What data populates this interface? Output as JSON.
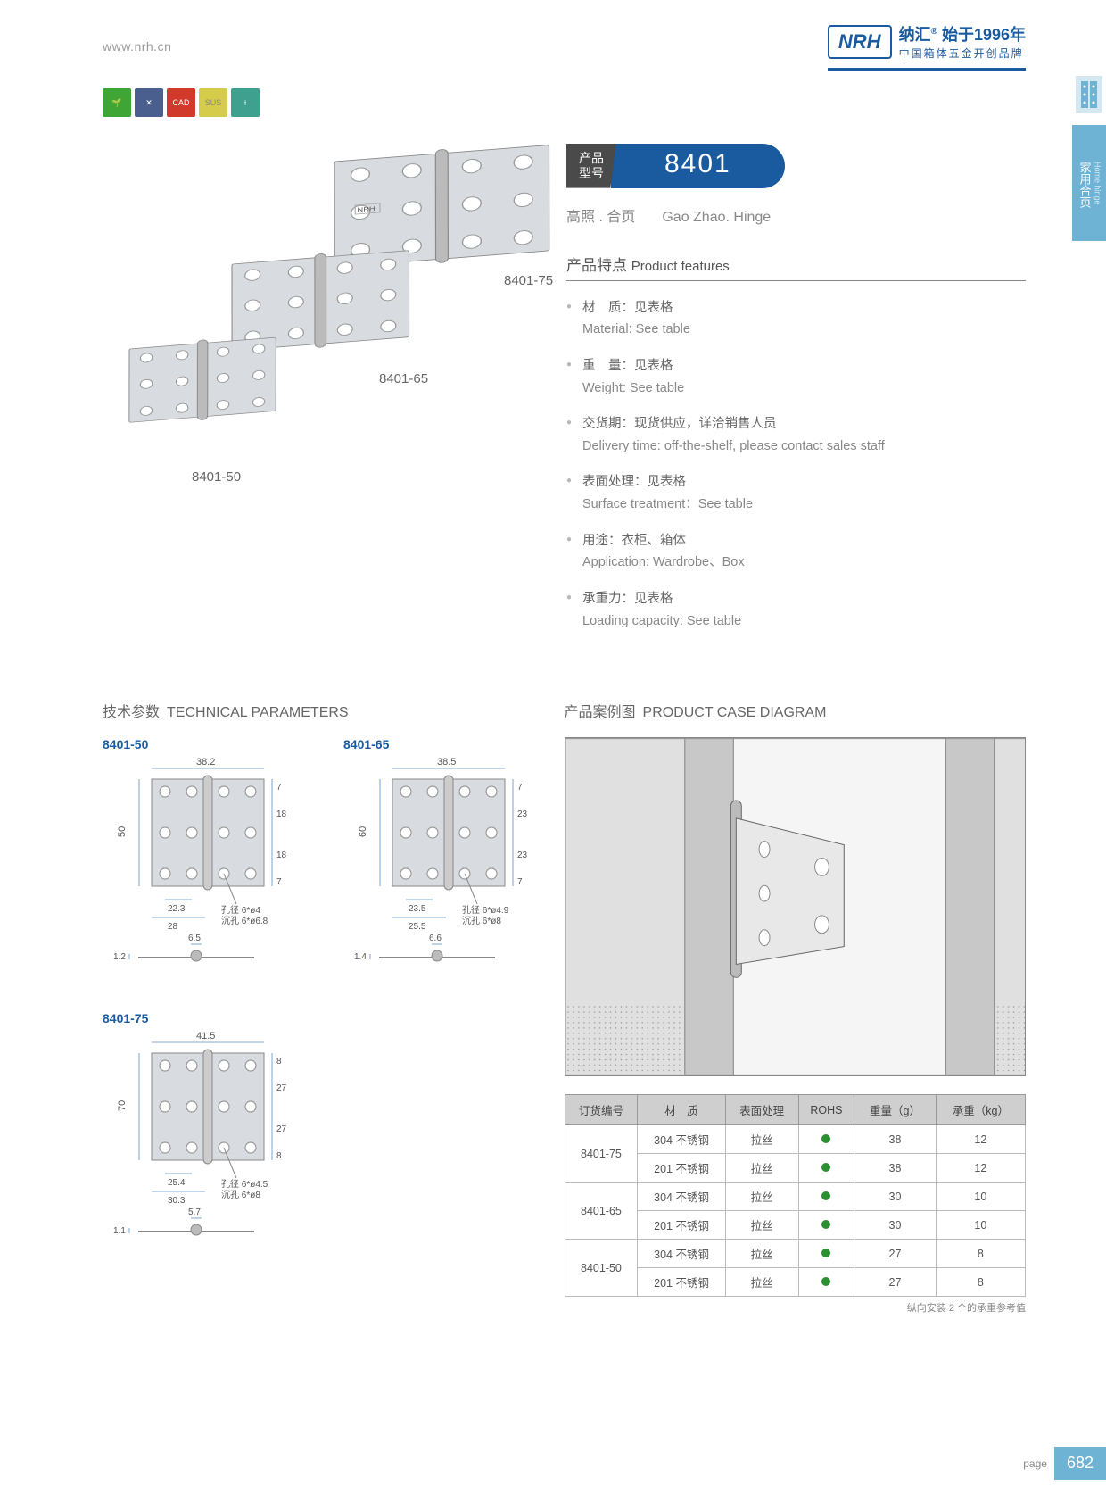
{
  "header": {
    "url": "www.nrh.cn",
    "logo": "NRH",
    "tagline_cn": "纳汇",
    "tagline_year": "始于1996年",
    "tagline_sub": "中国箱体五金开创品牌"
  },
  "side_tab": {
    "cn": "家用合页",
    "en": "Home hinge"
  },
  "badges": [
    {
      "color": "#3fa535",
      "icon": "eco"
    },
    {
      "color": "#4a5f8e",
      "icon": "tools"
    },
    {
      "color": "#d13a2a",
      "text": "CAD"
    },
    {
      "color": "#d4cc4a",
      "text": "SUS"
    },
    {
      "color": "#3fa090",
      "icon": "screw"
    }
  ],
  "product": {
    "model_label": "产品\n型号",
    "model": "8401",
    "name_cn": "高照 . 合页",
    "name_en": "Gao Zhao. Hinge",
    "variants": [
      "8401-75",
      "8401-65",
      "8401-50"
    ]
  },
  "features": {
    "title_cn": "产品特点",
    "title_en": "Product features",
    "items": [
      {
        "cn": "材　质：见表格",
        "en": "Material: See table"
      },
      {
        "cn": "重　量：见表格",
        "en": "Weight: See table"
      },
      {
        "cn": "交货期：现货供应，详洽销售人员",
        "en": "Delivery time: off-the-shelf, please contact sales staff"
      },
      {
        "cn": "表面处理：见表格",
        "en": "Surface treatment：See table"
      },
      {
        "cn": "用途：衣柜、箱体",
        "en": "Application: Wardrobe、Box"
      },
      {
        "cn": "承重力：见表格",
        "en": "Loading capacity: See table"
      }
    ]
  },
  "tech": {
    "title_cn": "技术参数",
    "title_en": "TECHNICAL PARAMETERS",
    "case_title_cn": "产品案例图",
    "case_title_en": "PRODUCT CASE DIAGRAM",
    "diagrams": {
      "8401-50": {
        "W": "38.2",
        "H": "50",
        "holes_top": "7",
        "holes_mid": "18",
        "hole_w": "22.3",
        "base_w": "28",
        "hole_spec1": "孔径 6*ø4",
        "hole_spec2": "沉孔 6*ø6.8",
        "pin_d": "6.5",
        "thick": "1.2"
      },
      "8401-65": {
        "W": "38.5",
        "H": "60",
        "holes_top": "7",
        "holes_mid": "23",
        "hole_w": "23.5",
        "base_w": "25.5",
        "hole_spec1": "孔径 6*ø4.9",
        "hole_spec2": "沉孔 6*ø8",
        "pin_d": "6.6",
        "thick": "1.4"
      },
      "8401-75": {
        "W": "41.5",
        "H": "70",
        "holes_top": "8",
        "holes_mid": "27",
        "hole_w": "25.4",
        "base_w": "30.3",
        "hole_spec1": "孔径 6*ø4.5",
        "hole_spec2": "沉孔 6*ø8",
        "pin_d": "5.7",
        "thick": "1.1"
      }
    }
  },
  "spec_table": {
    "headers": [
      "订货编号",
      "材　质",
      "表面处理",
      "ROHS",
      "重量（g）",
      "承重（kg）"
    ],
    "rows": [
      {
        "model": "8401-75",
        "mat": "304 不锈钢",
        "surf": "拉丝",
        "rohs": true,
        "wt": "38",
        "load": "12"
      },
      {
        "model": "",
        "mat": "201 不锈钢",
        "surf": "拉丝",
        "rohs": true,
        "wt": "38",
        "load": "12"
      },
      {
        "model": "8401-65",
        "mat": "304 不锈钢",
        "surf": "拉丝",
        "rohs": true,
        "wt": "30",
        "load": "10"
      },
      {
        "model": "",
        "mat": "201 不锈钢",
        "surf": "拉丝",
        "rohs": true,
        "wt": "30",
        "load": "10"
      },
      {
        "model": "8401-50",
        "mat": "304 不锈钢",
        "surf": "拉丝",
        "rohs": true,
        "wt": "27",
        "load": "8"
      },
      {
        "model": "",
        "mat": "201 不锈钢",
        "surf": "拉丝",
        "rohs": true,
        "wt": "27",
        "load": "8"
      }
    ],
    "note": "纵向安装 2 个的承重参考值"
  },
  "footer": {
    "label": "page",
    "num": "682"
  }
}
